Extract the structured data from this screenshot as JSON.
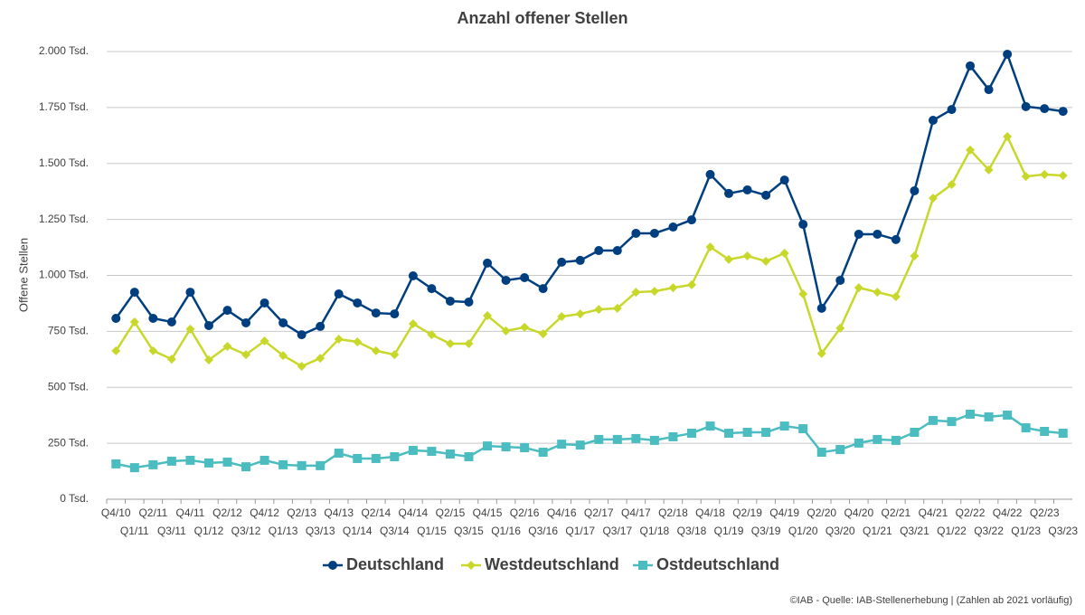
{
  "chart_data": {
    "type": "line",
    "title": "Anzahl offener Stellen",
    "y_label": "Offene Stellen",
    "footnote": "©IAB - Quelle: IAB-Stellenerhebung | (Zahlen ab 2021 vorläufig)",
    "categories": [
      "Q4/10",
      "Q1/11",
      "Q2/11",
      "Q3/11",
      "Q4/11",
      "Q1/12",
      "Q2/12",
      "Q3/12",
      "Q4/12",
      "Q1/13",
      "Q2/13",
      "Q3/13",
      "Q4/13",
      "Q1/14",
      "Q2/14",
      "Q3/14",
      "Q4/14",
      "Q1/15",
      "Q2/15",
      "Q3/15",
      "Q4/15",
      "Q1/16",
      "Q2/16",
      "Q3/16",
      "Q4/16",
      "Q1/17",
      "Q2/17",
      "Q3/17",
      "Q4/17",
      "Q1/18",
      "Q2/18",
      "Q3/18",
      "Q4/18",
      "Q1/19",
      "Q2/19",
      "Q3/19",
      "Q4/19",
      "Q1/20",
      "Q2/20",
      "Q3/20",
      "Q4/20",
      "Q1/21",
      "Q2/21",
      "Q3/21",
      "Q4/21",
      "Q1/22",
      "Q2/22",
      "Q3/22",
      "Q4/22",
      "Q1/23",
      "Q2/23",
      "Q3/23"
    ],
    "series": [
      {
        "name": "Deutschland",
        "color": "#003f7f",
        "marker": "circle",
        "values": [
          808,
          925,
          808,
          792,
          925,
          776,
          844,
          788,
          877,
          788,
          735,
          772,
          917,
          877,
          832,
          828,
          998,
          941,
          885,
          881,
          1055,
          978,
          990,
          941,
          1059,
          1067,
          1111,
          1111,
          1188,
          1188,
          1216,
          1248,
          1451,
          1366,
          1382,
          1358,
          1426,
          1228,
          853,
          978,
          1184,
          1184,
          1160,
          1378,
          1693,
          1741,
          1936,
          1830,
          1988,
          1754,
          1745,
          1733
        ]
      },
      {
        "name": "Westdeutschland",
        "color": "#c8d82b",
        "marker": "diamond",
        "values": [
          663,
          792,
          663,
          626,
          760,
          622,
          683,
          646,
          707,
          642,
          594,
          630,
          715,
          703,
          663,
          646,
          784,
          735,
          695,
          695,
          820,
          752,
          768,
          739,
          816,
          828,
          848,
          853,
          925,
          929,
          945,
          958,
          1127,
          1071,
          1087,
          1063,
          1099,
          917,
          651,
          764,
          945,
          925,
          905,
          1087,
          1345,
          1406,
          1560,
          1471,
          1620,
          1442,
          1451,
          1446
        ]
      },
      {
        "name": "Ostdeutschland",
        "color": "#4bbdc1",
        "marker": "square",
        "values": [
          158,
          141,
          154,
          170,
          174,
          162,
          166,
          145,
          174,
          154,
          150,
          150,
          206,
          182,
          182,
          190,
          218,
          214,
          202,
          190,
          238,
          234,
          230,
          210,
          246,
          242,
          267,
          267,
          271,
          263,
          279,
          295,
          327,
          295,
          299,
          299,
          327,
          315,
          210,
          222,
          251,
          267,
          263,
          299,
          352,
          347,
          380,
          368,
          376,
          319,
          303,
          295
        ]
      }
    ],
    "ylim": [
      0,
      2000
    ],
    "yticks": [
      {
        "value": 0,
        "label": "0 Tsd."
      },
      {
        "value": 250,
        "label": "250 Tsd."
      },
      {
        "value": 500,
        "label": "500 Tsd."
      },
      {
        "value": 750,
        "label": "750 Tsd."
      },
      {
        "value": 1000,
        "label": "1.000 Tsd."
      },
      {
        "value": 1250,
        "label": "1.250 Tsd."
      },
      {
        "value": 1500,
        "label": "1.500 Tsd."
      },
      {
        "value": 1750,
        "label": "1.750 Tsd."
      },
      {
        "value": 2000,
        "label": "2.000 Tsd."
      }
    ],
    "grid": true,
    "legend": "bottom"
  }
}
